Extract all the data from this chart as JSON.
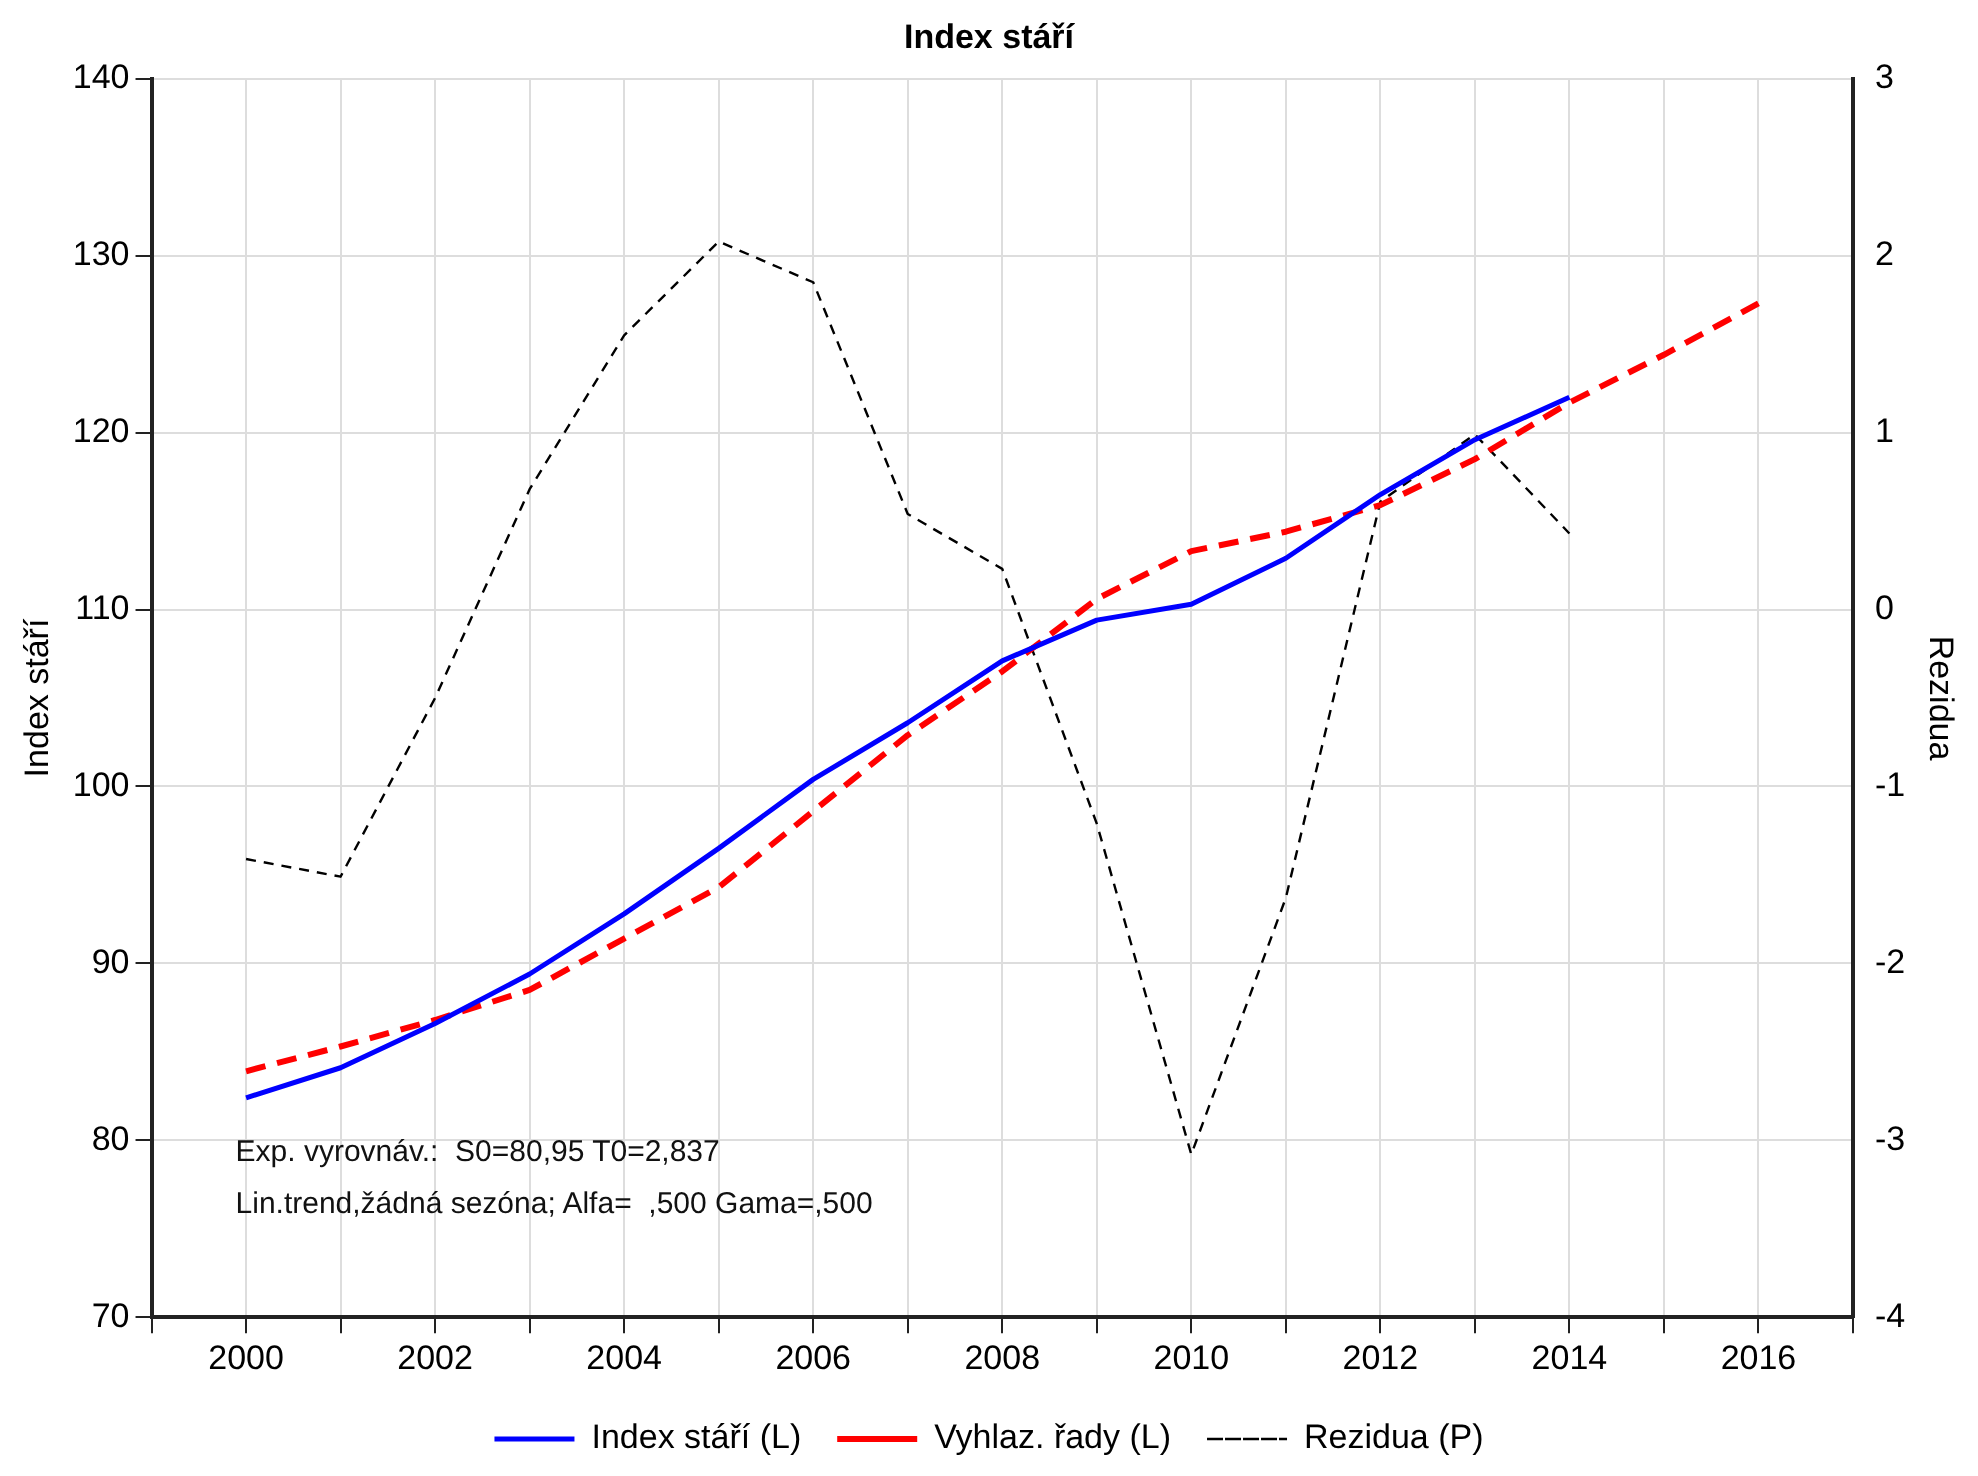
{
  "chart_data": {
    "type": "line",
    "title": "Index stáří",
    "ylabel": "Index stáří",
    "y2label": "Rezidua",
    "x": [
      2000,
      2001,
      2002,
      2003,
      2004,
      2005,
      2006,
      2007,
      2008,
      2009,
      2010,
      2011,
      2012,
      2013,
      2014,
      2015,
      2016
    ],
    "series": [
      {
        "name": "Index stáří (L)",
        "color": "#0000ff",
        "line_style": "solid",
        "values": [
          82.4,
          84.1,
          86.6,
          89.4,
          92.8,
          96.5,
          100.4,
          103.6,
          107.1,
          109.4,
          110.3,
          112.9,
          116.5,
          119.6,
          122.0,
          null,
          null
        ]
      },
      {
        "name": "Vyhlaz. řady (L)",
        "color": "#ff0000",
        "line_style": "dashed",
        "values": [
          83.9,
          85.3,
          86.8,
          88.5,
          91.4,
          94.3,
          98.6,
          102.9,
          106.5,
          110.6,
          113.3,
          114.4,
          115.9,
          118.5,
          121.7,
          124.4,
          127.3
        ]
      },
      {
        "name": "Rezidua (P)",
        "color": "#000000",
        "line_style": "dotted",
        "axis": "y2",
        "values": [
          -1.41,
          -1.51,
          -0.5,
          0.68,
          1.55,
          2.08,
          1.85,
          0.54,
          0.23,
          -1.21,
          -3.08,
          -1.63,
          0.61,
          0.99,
          0.43,
          null,
          null
        ]
      }
    ],
    "xlim": [
      1999,
      2017
    ],
    "xticks": [
      {
        "value": 1999,
        "label": null
      },
      2000,
      {
        "value": 2001,
        "label": null
      },
      2002,
      {
        "value": 2003,
        "label": null
      },
      2004,
      {
        "value": 2005,
        "label": null
      },
      2006,
      {
        "value": 2007,
        "label": null
      },
      2008,
      {
        "value": 2009,
        "label": null
      },
      2010,
      {
        "value": 2011,
        "label": null
      },
      2012,
      {
        "value": 2013,
        "label": null
      },
      2014,
      {
        "value": 2015,
        "label": null
      },
      2016,
      {
        "value": 2017,
        "label": null
      }
    ],
    "ylim": [
      70,
      140
    ],
    "yticks": [
      70,
      80,
      90,
      100,
      110,
      120,
      130,
      140
    ],
    "y2lim": [
      -4,
      3
    ],
    "y2ticks": [
      -4,
      -3,
      -2,
      -1,
      0,
      1,
      2,
      3
    ],
    "grid": true,
    "legend": "bottom",
    "marker": "none",
    "annotations": [
      "Exp. vyrovnáv.:  S0=80,95 T0=2,837",
      "Lin.trend,žádná sezóna; Alfa=  ,500 Gama=,500"
    ]
  }
}
